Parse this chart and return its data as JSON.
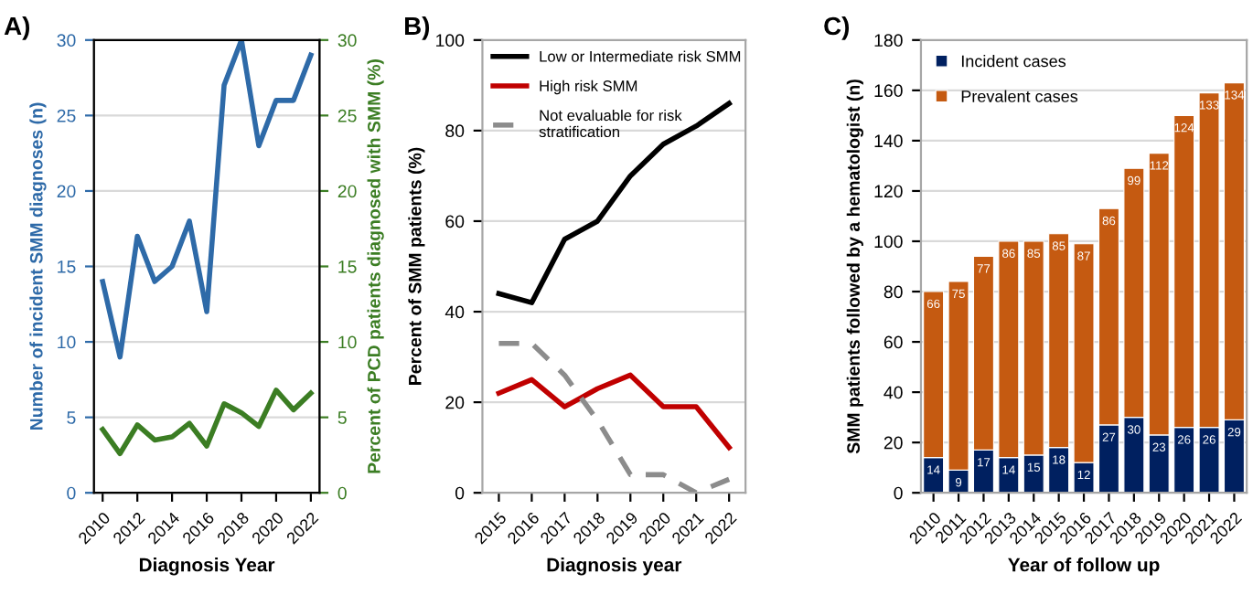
{
  "chart_data": [
    {
      "type": "line",
      "title": "A)",
      "xlabel": "Diagnosis Year",
      "ylabel": "Number of incident SMM diagnoses (n)",
      "y2label": "Percent of PCD patients diagnosed with SMM (%)",
      "x": [
        2010,
        2011,
        2012,
        2013,
        2014,
        2015,
        2016,
        2017,
        2018,
        2019,
        2020,
        2021,
        2022
      ],
      "series": [
        {
          "color": "#2e6aa8",
          "values": [
            14,
            9,
            17,
            14,
            15,
            18,
            12,
            27,
            30,
            23,
            26,
            26,
            29
          ]
        },
        {
          "color": "#3b7d23",
          "axis": "y2",
          "values": [
            4.2,
            2.6,
            4.5,
            3.5,
            3.7,
            4.6,
            3.1,
            5.9,
            5.3,
            4.4,
            6.8,
            5.5,
            6.6
          ]
        }
      ],
      "xlim": [
        2009.5,
        2022.5
      ],
      "xticks": [
        2010,
        2012,
        2014,
        2016,
        2018,
        2020,
        2022
      ],
      "ylim": [
        0,
        30
      ],
      "yticks": [
        0,
        5,
        10,
        15,
        20,
        25,
        30
      ],
      "y2lim": [
        0,
        30
      ],
      "y2ticks": [
        0,
        5,
        10,
        15,
        20,
        25,
        30
      ],
      "grid": "y",
      "legend": false
    },
    {
      "type": "line",
      "title": "B)",
      "xlabel": "Diagnosis year",
      "ylabel": "Percent of SMM patients (%)",
      "categories": [
        "2015",
        "2016",
        "2017",
        "2018",
        "2019",
        "2020",
        "2021",
        "2022"
      ],
      "series": [
        {
          "name": "Low or Intermediate risk SMM",
          "color": "#000000",
          "values": [
            44,
            42,
            56,
            60,
            70,
            77,
            81,
            86
          ]
        },
        {
          "name": "High risk SMM",
          "color": "#c00000",
          "values": [
            22,
            25,
            19,
            23,
            26,
            19,
            19,
            10
          ]
        },
        {
          "name": "Not evaluable for risk\nstratification",
          "color": "#8c8c8c",
          "line_style": "dashed",
          "values": [
            33,
            33,
            26,
            16,
            4,
            4,
            0,
            3
          ]
        }
      ],
      "ylim": [
        0,
        100
      ],
      "yticks": [
        0,
        20,
        40,
        60,
        80,
        100
      ],
      "grid": "y",
      "legend": "top left"
    },
    {
      "type": "bar",
      "stacked": true,
      "title": "C)",
      "xlabel": "Year of follow up",
      "ylabel": "SMM patients followed by a hematologist (n)",
      "categories": [
        "2010",
        "2011",
        "2012",
        "2013",
        "2014",
        "2015",
        "2016",
        "2017",
        "2018",
        "2019",
        "2020",
        "2021",
        "2022"
      ],
      "series": [
        {
          "name": "Incident cases",
          "color": "#002060",
          "values": [
            14,
            9,
            17,
            14,
            15,
            18,
            12,
            27,
            30,
            23,
            26,
            26,
            29
          ]
        },
        {
          "name": "Prevalent cases",
          "color": "#c55a11",
          "values": [
            66,
            75,
            77,
            86,
            85,
            85,
            87,
            86,
            99,
            112,
            124,
            133,
            134
          ]
        }
      ],
      "ylim": [
        0,
        180
      ],
      "yticks": [
        0,
        20,
        40,
        60,
        80,
        100,
        120,
        140,
        160,
        180
      ],
      "grid": "y",
      "legend": "top left",
      "data_labels": true
    }
  ]
}
